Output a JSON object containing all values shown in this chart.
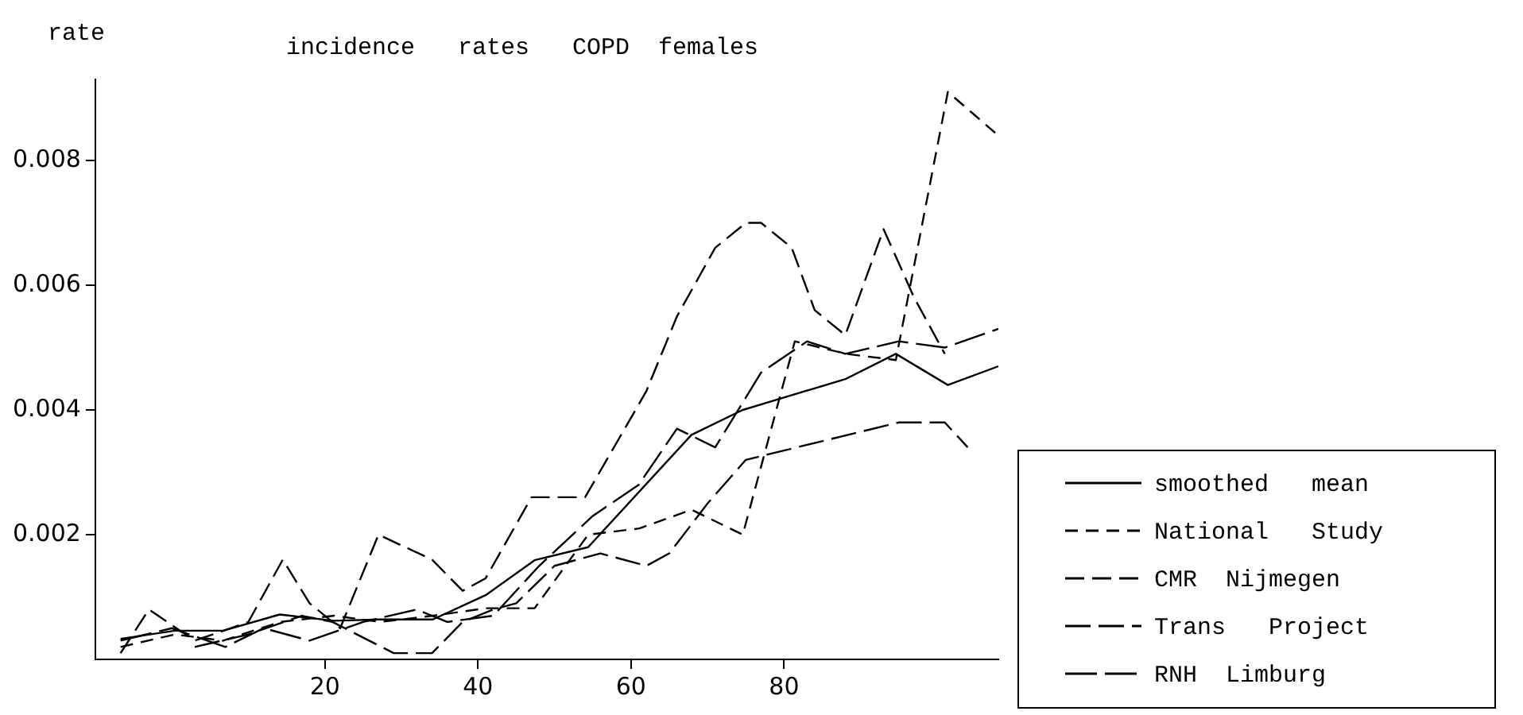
{
  "chart_data": {
    "type": "line",
    "title": "incidence   rates   COPD  females",
    "ylabel": "rate",
    "xlim": [
      -10,
      108
    ],
    "xticks": [
      20,
      40,
      60,
      80
    ],
    "ylim": [
      0,
      0.0093
    ],
    "yticks": [
      0.002,
      0.004,
      0.006,
      0.008
    ],
    "grid": false,
    "legend": "bottom right",
    "marker": "none",
    "series": [
      {
        "name": "smoothed   mean",
        "color": "#000000",
        "line_style": "solid",
        "x": [
          -6.7,
          0.4,
          6.7,
          14.1,
          21.2,
          27.2,
          34.1,
          41,
          47.4,
          54.4,
          67.9,
          74.6,
          88.1,
          94.6,
          101.4,
          108
        ],
        "values": [
          0.00033,
          0.00046,
          0.00046,
          0.00072,
          0.00062,
          0.00064,
          0.00064,
          0.00103,
          0.00159,
          0.0018,
          0.0036,
          0.004,
          0.0045,
          0.0049,
          0.0044,
          0.0047
        ]
      },
      {
        "name": "National   Study",
        "color": "#000000",
        "line_style": "dashed",
        "x": [
          -6.7,
          0.4,
          6.7,
          14.1,
          21.2,
          27.2,
          34.1,
          41,
          47.4,
          54.4,
          61.1,
          67.9,
          74.6,
          81.4,
          88.1,
          94.6,
          101.4,
          108
        ],
        "values": [
          0.0002,
          0.0004,
          0.0003,
          0.0006,
          0.0007,
          0.0006,
          0.0007,
          0.00082,
          0.00082,
          0.002,
          0.0021,
          0.0024,
          0.002,
          0.0051,
          0.0049,
          0.0048,
          0.0091,
          0.0084
        ]
      },
      {
        "name": "CMR  Nijmegen",
        "color": "#000000",
        "line_style": "dashed",
        "x": [
          -6.7,
          -3,
          3,
          10,
          14.5,
          18,
          22,
          27,
          34,
          38,
          41,
          47,
          54,
          62,
          66,
          71,
          75,
          77,
          81,
          84,
          88,
          93,
          97,
          101
        ],
        "values": [
          0.0001,
          0.0008,
          0.0003,
          0.0006,
          0.0016,
          0.0009,
          0.0005,
          0.002,
          0.0016,
          0.0011,
          0.0013,
          0.0026,
          0.0026,
          0.0043,
          0.0055,
          0.0066,
          0.007,
          0.007,
          0.0066,
          0.0056,
          0.0052,
          0.0069,
          0.0058,
          0.0049
        ]
      },
      {
        "name": "Trans   Project",
        "color": "#000000",
        "line_style": "dashed",
        "x": [
          3,
          10,
          17,
          21,
          29,
          34,
          38,
          42,
          45,
          50,
          56,
          62,
          65,
          70,
          75,
          95,
          101,
          104
        ],
        "values": [
          0.0002,
          0.0004,
          0.0007,
          0.0006,
          0.0001,
          0.0001,
          0.0006,
          0.0008,
          0.0009,
          0.0015,
          0.0017,
          0.0015,
          0.0017,
          0.0025,
          0.0032,
          0.0038,
          0.0038,
          0.0034
        ]
      },
      {
        "name": "RNH  Limburg",
        "color": "#000000",
        "line_style": "dashed",
        "x": [
          -6.7,
          0,
          7,
          12,
          18,
          25,
          32,
          36,
          42,
          48,
          55,
          61,
          66,
          71,
          77,
          83,
          88,
          95,
          101,
          108
        ],
        "values": [
          0.0003,
          0.0005,
          0.0002,
          0.0005,
          0.0003,
          0.0006,
          0.0008,
          0.0006,
          0.0007,
          0.0015,
          0.0023,
          0.0028,
          0.0037,
          0.0034,
          0.0046,
          0.0051,
          0.0049,
          0.0051,
          0.005,
          0.0053
        ]
      }
    ]
  }
}
